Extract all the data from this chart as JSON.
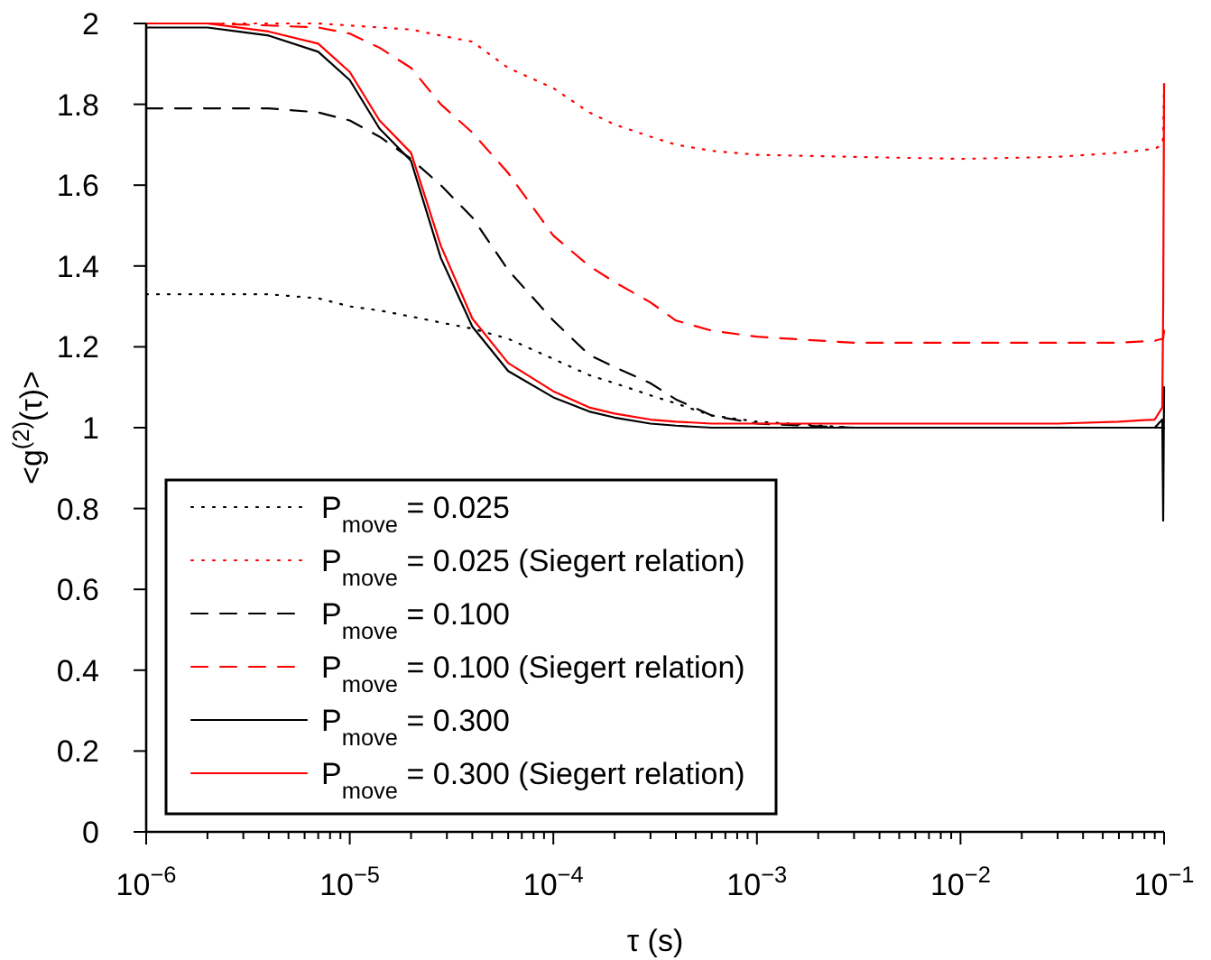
{
  "chart_data": {
    "type": "line",
    "xlabel": "τ  (s)",
    "ylabel": "<g$^{(2)}$(τ)>",
    "log": "x",
    "legend": "bottom left",
    "grid": false,
    "x": [
      1e-06,
      2e-06,
      4e-06,
      7e-06,
      1e-05,
      1.4e-05,
      2e-05,
      2.8e-05,
      4e-05,
      6e-05,
      0.0001,
      0.00015,
      0.0002,
      0.0003,
      0.0004,
      0.0006,
      0.001,
      0.003,
      0.01,
      0.03,
      0.06,
      0.09,
      0.098,
      0.099,
      0.1
    ],
    "xlim": [
      1e-06,
      0.1
    ],
    "xticks": [
      {
        "value": 1e-06,
        "label": "10$^{−6}$"
      },
      {
        "value": 2e-06,
        "label": null
      },
      {
        "value": 3e-06,
        "label": null
      },
      {
        "value": 4e-06,
        "label": null
      },
      {
        "value": 5e-06,
        "label": null
      },
      {
        "value": 6e-06,
        "label": null
      },
      {
        "value": 7e-06,
        "label": null
      },
      {
        "value": 8e-06,
        "label": null
      },
      {
        "value": 9e-06,
        "label": null
      },
      {
        "value": 1e-05,
        "label": "10$^{−5}$"
      },
      {
        "value": 2e-05,
        "label": null
      },
      {
        "value": 3e-05,
        "label": null
      },
      {
        "value": 4e-05,
        "label": null
      },
      {
        "value": 5e-05,
        "label": null
      },
      {
        "value": 6e-05,
        "label": null
      },
      {
        "value": 7e-05,
        "label": null
      },
      {
        "value": 8e-05,
        "label": null
      },
      {
        "value": 9e-05,
        "label": null
      },
      {
        "value": 0.0001,
        "label": "10$^{−4}$"
      },
      {
        "value": 0.0002,
        "label": null
      },
      {
        "value": 0.0003,
        "label": null
      },
      {
        "value": 0.0004,
        "label": null
      },
      {
        "value": 0.0005,
        "label": null
      },
      {
        "value": 0.0006,
        "label": null
      },
      {
        "value": 0.0007,
        "label": null
      },
      {
        "value": 0.0008,
        "label": null
      },
      {
        "value": 0.0009,
        "label": null
      },
      {
        "value": 0.001,
        "label": "10$^{−3}$"
      },
      {
        "value": 0.002,
        "label": null
      },
      {
        "value": 0.003,
        "label": null
      },
      {
        "value": 0.004,
        "label": null
      },
      {
        "value": 0.005,
        "label": null
      },
      {
        "value": 0.006,
        "label": null
      },
      {
        "value": 0.007,
        "label": null
      },
      {
        "value": 0.008,
        "label": null
      },
      {
        "value": 0.009,
        "label": null
      },
      {
        "value": 0.01,
        "label": "10$^{−2}$"
      },
      {
        "value": 0.02,
        "label": null
      },
      {
        "value": 0.03,
        "label": null
      },
      {
        "value": 0.04,
        "label": null
      },
      {
        "value": 0.05,
        "label": null
      },
      {
        "value": 0.06,
        "label": null
      },
      {
        "value": 0.07,
        "label": null
      },
      {
        "value": 0.08,
        "label": null
      },
      {
        "value": 0.09,
        "label": null
      },
      {
        "value": 0.1,
        "label": "10$^{−1}$"
      }
    ],
    "ylim": [
      0,
      2
    ],
    "yticks": [
      0,
      0.2,
      0.4,
      0.6,
      0.8,
      1,
      1.2,
      1.4,
      1.6,
      1.8,
      2
    ],
    "series": [
      {
        "name": "P$_{move}$ = 0.025",
        "color": "#000000",
        "line_style": "dotted",
        "values": [
          1.33,
          1.33,
          1.33,
          1.32,
          1.3,
          1.29,
          1.275,
          1.26,
          1.245,
          1.22,
          1.17,
          1.13,
          1.11,
          1.08,
          1.06,
          1.03,
          1.015,
          1.0,
          1.0,
          1.0,
          1.0,
          1.0,
          1.0,
          1.0,
          1.0
        ]
      },
      {
        "name": "P$_{move}$ = 0.025 (Siegert relation)",
        "color": "#ff0000",
        "line_style": "dotted",
        "values": [
          2.0,
          2.0,
          2.0,
          2.0,
          1.995,
          1.99,
          1.985,
          1.97,
          1.955,
          1.89,
          1.84,
          1.78,
          1.75,
          1.72,
          1.7,
          1.685,
          1.675,
          1.67,
          1.665,
          1.67,
          1.68,
          1.69,
          1.7,
          1.72,
          1.85
        ]
      },
      {
        "name": "P$_{move}$ = 0.100",
        "color": "#000000",
        "line_style": "dashed",
        "values": [
          1.79,
          1.79,
          1.79,
          1.78,
          1.76,
          1.72,
          1.665,
          1.6,
          1.52,
          1.39,
          1.265,
          1.18,
          1.15,
          1.11,
          1.07,
          1.03,
          1.01,
          1.0,
          1.0,
          1.0,
          1.0,
          1.0,
          1.0,
          1.0,
          1.0
        ]
      },
      {
        "name": "P$_{move}$ = 0.100 (Siegert relation)",
        "color": "#ff0000",
        "line_style": "dashed",
        "values": [
          2.0,
          2.0,
          1.995,
          1.99,
          1.975,
          1.94,
          1.89,
          1.8,
          1.73,
          1.63,
          1.475,
          1.4,
          1.36,
          1.31,
          1.265,
          1.24,
          1.225,
          1.21,
          1.21,
          1.21,
          1.21,
          1.215,
          1.22,
          1.22,
          1.24
        ]
      },
      {
        "name": "P$_{move}$ = 0.300",
        "color": "#000000",
        "line_style": "solid",
        "values": [
          1.99,
          1.99,
          1.97,
          1.93,
          1.86,
          1.74,
          1.66,
          1.42,
          1.25,
          1.14,
          1.075,
          1.04,
          1.025,
          1.01,
          1.005,
          1.0,
          1.0,
          1.0,
          1.0,
          1.0,
          1.0,
          1.0,
          1.02,
          0.77,
          1.1
        ]
      },
      {
        "name": "P$_{move}$ = 0.300 (Siegert relation)",
        "color": "#ff0000",
        "line_style": "solid",
        "values": [
          2.0,
          2.0,
          1.98,
          1.95,
          1.88,
          1.76,
          1.68,
          1.45,
          1.27,
          1.16,
          1.09,
          1.05,
          1.035,
          1.02,
          1.015,
          1.01,
          1.01,
          1.01,
          1.01,
          1.01,
          1.015,
          1.02,
          1.05,
          1.3,
          1.85
        ]
      }
    ]
  }
}
